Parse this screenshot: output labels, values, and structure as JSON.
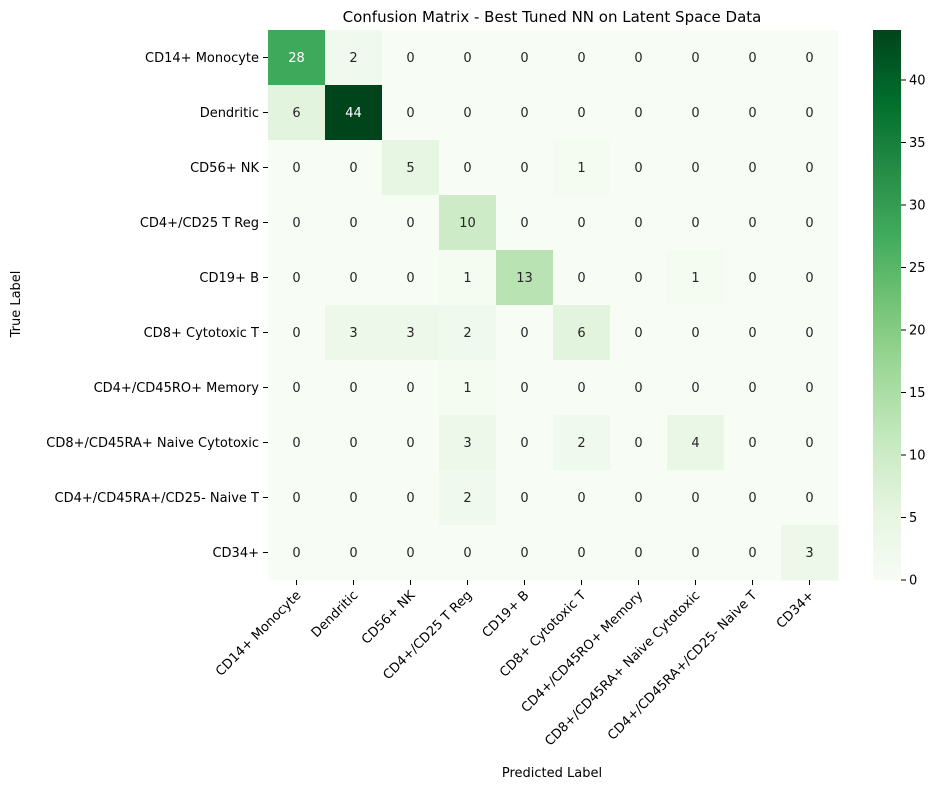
{
  "chart_data": {
    "type": "heatmap",
    "title": "Confusion Matrix - Best Tuned NN on Latent Space Data",
    "xlabel": "Predicted Label",
    "ylabel": "True Label",
    "row_labels": [
      "CD14+ Monocyte",
      "Dendritic",
      "CD56+ NK",
      "CD4+/CD25 T Reg",
      "CD19+ B",
      "CD8+ Cytotoxic T",
      "CD4+/CD45RO+ Memory",
      "CD8+/CD45RA+ Naive Cytotoxic",
      "CD4+/CD45RA+/CD25- Naive T",
      "CD34+"
    ],
    "col_labels": [
      "CD14+ Monocyte",
      "Dendritic",
      "CD56+ NK",
      "CD4+/CD25 T Reg",
      "CD19+ B",
      "CD8+ Cytotoxic T",
      "CD4+/CD45RO+ Memory",
      "CD8+/CD45RA+ Naive Cytotoxic",
      "CD4+/CD45RA+/CD25- Naive T",
      "CD34+"
    ],
    "matrix": [
      [
        28,
        2,
        0,
        0,
        0,
        0,
        0,
        0,
        0,
        0
      ],
      [
        6,
        44,
        0,
        0,
        0,
        0,
        0,
        0,
        0,
        0
      ],
      [
        0,
        0,
        5,
        0,
        0,
        1,
        0,
        0,
        0,
        0
      ],
      [
        0,
        0,
        0,
        10,
        0,
        0,
        0,
        0,
        0,
        0
      ],
      [
        0,
        0,
        0,
        1,
        13,
        0,
        0,
        1,
        0,
        0
      ],
      [
        0,
        3,
        3,
        2,
        0,
        6,
        0,
        0,
        0,
        0
      ],
      [
        0,
        0,
        0,
        1,
        0,
        0,
        0,
        0,
        0,
        0
      ],
      [
        0,
        0,
        0,
        3,
        0,
        2,
        0,
        4,
        0,
        0
      ],
      [
        0,
        0,
        0,
        2,
        0,
        0,
        0,
        0,
        0,
        0
      ],
      [
        0,
        0,
        0,
        0,
        0,
        0,
        0,
        0,
        0,
        3
      ]
    ],
    "colormap": "Greens",
    "colorbar": {
      "min": 0,
      "max": 44,
      "ticks": [
        0,
        5,
        10,
        15,
        20,
        25,
        30,
        35,
        40
      ]
    },
    "colors": {
      "low": "#f7fcf5",
      "high": "#00441b"
    }
  }
}
